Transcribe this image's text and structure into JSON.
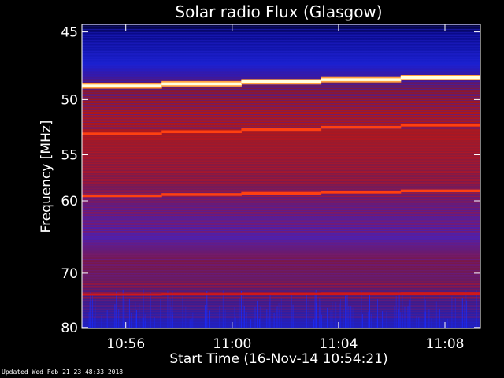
{
  "chart_data": {
    "type": "heatmap",
    "title": "Solar radio Flux (Glasgow)",
    "xlabel": "Start Time (16-Nov-14 10:54:21)",
    "ylabel": "Frequency [MHz]",
    "x_start": "10:54:21",
    "x_end": "11:09:20",
    "x_ticks": [
      {
        "time": "10:56",
        "label": "10:56"
      },
      {
        "time": "11:00",
        "label": "11:00"
      },
      {
        "time": "11:04",
        "label": "11:04"
      },
      {
        "time": "11:08",
        "label": "11:08"
      }
    ],
    "y_range_mhz": [
      44.5,
      80.2
    ],
    "y_ticks": [
      45,
      50,
      55,
      60,
      70,
      80
    ],
    "colorscale": [
      "#0000a0",
      "#2020e0",
      "#6a1fb0",
      "#a0183a",
      "#d01010",
      "#ff3010",
      "#ffa040",
      "#ffffe0"
    ],
    "bright_emission_bands_mhz": [
      {
        "freq_start": 48.9,
        "freq_end": 48.1,
        "intensity": "saturated"
      },
      {
        "freq_start": 53.0,
        "freq_end": 52.0,
        "intensity": "high"
      },
      {
        "freq_start": 59.4,
        "freq_end": 58.7,
        "intensity": "high"
      },
      {
        "freq_start": 73.6,
        "freq_end": 73.4,
        "intensity": "medium"
      }
    ],
    "background_levels_by_frequency": [
      {
        "freq": 45,
        "level": "low"
      },
      {
        "freq": 47,
        "level": "low"
      },
      {
        "freq": 51,
        "level": "low"
      },
      {
        "freq": 54,
        "level": "medium-high"
      },
      {
        "freq": 57,
        "level": "medium-high"
      },
      {
        "freq": 62,
        "level": "medium"
      },
      {
        "freq": 66,
        "level": "medium-low"
      },
      {
        "freq": 69,
        "level": "low-medium"
      },
      {
        "freq": 73,
        "level": "medium-high"
      },
      {
        "freq": 76,
        "level": "medium-low"
      },
      {
        "freq": 80,
        "level": "low"
      }
    ]
  },
  "footer": {
    "updated": "Updated Wed Feb 21 23:48:33 2018"
  }
}
